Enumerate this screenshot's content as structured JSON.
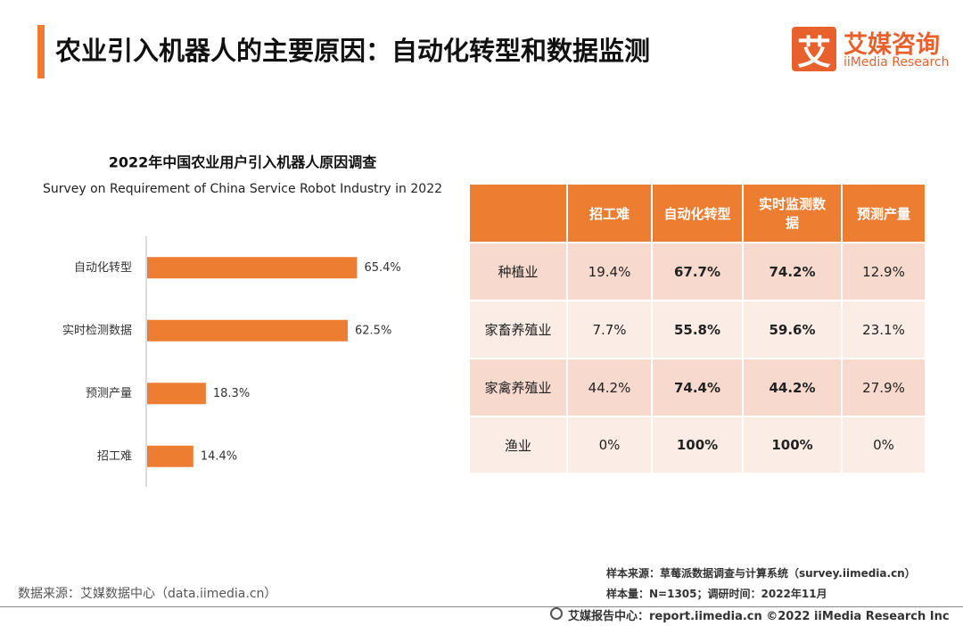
{
  "header": {
    "title": "农业引入机器人的主要原因：自动化转型和数据监测",
    "logo_icon": "艾",
    "logo_name": "艾媒咨询",
    "logo_sub": "iiMedia Research"
  },
  "chart_data": {
    "type": "bar",
    "orientation": "horizontal",
    "title": "2022年中国农业用户引入机器人原因调查",
    "subtitle": "Survey on Requirement of China Service Robot Industry in 2022",
    "categories": [
      "自动化转型",
      "实时检测数据",
      "预测产量",
      "招工难"
    ],
    "values": [
      65.4,
      62.5,
      18.3,
      14.4
    ],
    "value_labels": [
      "65.4%",
      "62.5%",
      "18.3%",
      "14.4%"
    ],
    "color": "#ed7d31"
  },
  "table": {
    "header": [
      "招工难",
      "自动化转型",
      "实时监测数据",
      "预测产量"
    ],
    "rows": [
      [
        "种植业",
        "19.4%",
        "67.7%",
        "74.2%",
        "12.9%"
      ],
      [
        "家畜养殖业",
        "7.7%",
        "55.8%",
        "59.6%",
        "23.1%"
      ],
      [
        "家禽养殖业",
        "44.2%",
        "74.4%",
        "44.2%",
        "27.9%"
      ],
      [
        "渔业",
        "0%",
        "100%",
        "100%",
        "0%"
      ]
    ]
  },
  "footer": {
    "source": "数据来源：艾媒数据中心（data.iimedia.cn）",
    "sample_source": "样本来源：草莓派数据调查与计算系统（survey.iimedia.cn）",
    "sample_size": "样本量：N=1305；调研时间：2022年11月",
    "copyright": "艾媒报告中心：report.iimedia.cn  ©2022  iiMedia Research  Inc"
  }
}
